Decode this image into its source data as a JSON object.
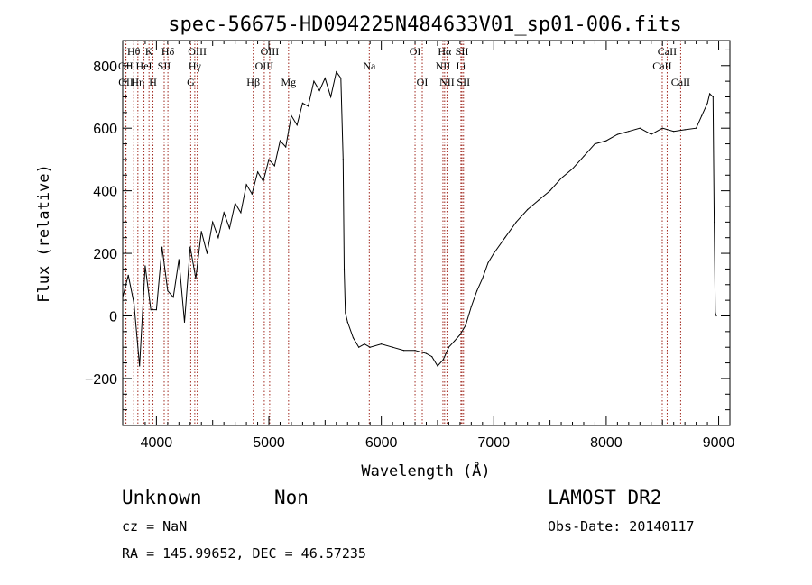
{
  "chart_data": {
    "type": "line",
    "title": "spec-56675-HD094225N484633V01_sp01-006.fits",
    "xlabel": "Wavelength (Å)",
    "ylabel": "Flux (relative)",
    "xlim": [
      3700,
      9100
    ],
    "ylim": [
      -350,
      880
    ],
    "xticks": [
      "4000",
      "5000",
      "6000",
      "7000",
      "8000",
      "9000"
    ],
    "yticks": [
      "−200",
      "0",
      "200",
      "400",
      "600",
      "800"
    ],
    "grid": false,
    "series": [
      {
        "x": [
          3700,
          3750,
          3800,
          3850,
          3900,
          3950,
          4000,
          4050,
          4100,
          4150,
          4200,
          4250,
          4300,
          4350,
          4400,
          4450,
          4500,
          4550,
          4600,
          4650,
          4700,
          4750,
          4800,
          4850,
          4900,
          4950,
          5000,
          5050,
          5100,
          5150,
          5200,
          5250,
          5300,
          5350,
          5400,
          5450,
          5500,
          5550,
          5600,
          5640,
          5660,
          5670,
          5680,
          5700,
          5750,
          5800,
          5850,
          5900,
          6000,
          6100,
          6200,
          6300,
          6400,
          6450,
          6500,
          6550,
          6600,
          6650,
          6700,
          6750,
          6800,
          6850,
          6900,
          6950,
          7000,
          7100,
          7200,
          7300,
          7400,
          7500,
          7600,
          7700,
          7800,
          7900,
          8000,
          8100,
          8200,
          8300,
          8400,
          8500,
          8600,
          8700,
          8800,
          8850,
          8900,
          8920,
          8950,
          8960,
          8970,
          8980
        ],
        "y": [
          60,
          130,
          40,
          -160,
          160,
          20,
          20,
          220,
          80,
          60,
          180,
          -20,
          220,
          120,
          270,
          200,
          300,
          250,
          330,
          280,
          360,
          330,
          420,
          390,
          460,
          430,
          500,
          480,
          560,
          540,
          640,
          610,
          680,
          670,
          750,
          720,
          760,
          700,
          780,
          760,
          500,
          150,
          10,
          -20,
          -70,
          -100,
          -90,
          -100,
          -90,
          -100,
          -110,
          -110,
          -120,
          -130,
          -160,
          -140,
          -100,
          -80,
          -60,
          -30,
          30,
          80,
          120,
          170,
          200,
          250,
          300,
          340,
          370,
          400,
          440,
          470,
          510,
          550,
          560,
          580,
          590,
          600,
          580,
          600,
          590,
          595,
          600,
          640,
          680,
          710,
          700,
          300,
          10,
          0
        ]
      }
    ],
    "spectral_lines": [
      {
        "label": "Hθ",
        "x": 3798,
        "row": 1
      },
      {
        "label": "OII",
        "x": 3727,
        "row": 2
      },
      {
        "label": "OII",
        "x": 3729,
        "row": 3
      },
      {
        "label": "K",
        "x": 3934,
        "row": 1
      },
      {
        "label": "HeI",
        "x": 3889,
        "row": 2
      },
      {
        "label": "Hη",
        "x": 3835,
        "row": 3
      },
      {
        "label": "Hδ",
        "x": 4102,
        "row": 1
      },
      {
        "label": "SII",
        "x": 4069,
        "row": 2
      },
      {
        "label": "H",
        "x": 3969,
        "row": 3
      },
      {
        "label": "OIII",
        "x": 4363,
        "row": 1
      },
      {
        "label": "Hγ",
        "x": 4341,
        "row": 2
      },
      {
        "label": "G",
        "x": 4305,
        "row": 3
      },
      {
        "label": "Hβ",
        "x": 4861,
        "row": 3
      },
      {
        "label": "OIII",
        "x": 5007,
        "row": 1
      },
      {
        "label": "OIII",
        "x": 4959,
        "row": 2
      },
      {
        "label": "Mg",
        "x": 5175,
        "row": 3
      },
      {
        "label": "Na",
        "x": 5893,
        "row": 2
      },
      {
        "label": "OI",
        "x": 6300,
        "row": 1
      },
      {
        "label": "OI",
        "x": 6364,
        "row": 3
      },
      {
        "label": "Hα",
        "x": 6563,
        "row": 1
      },
      {
        "label": "SII",
        "x": 6717,
        "row": 1
      },
      {
        "label": "NII",
        "x": 6548,
        "row": 2
      },
      {
        "label": "Li",
        "x": 6708,
        "row": 2
      },
      {
        "label": "NII",
        "x": 6584,
        "row": 3
      },
      {
        "label": "SII",
        "x": 6731,
        "row": 3
      },
      {
        "label": "CaII",
        "x": 8542,
        "row": 1
      },
      {
        "label": "CaII",
        "x": 8498,
        "row": 2
      },
      {
        "label": "CaII",
        "x": 8662,
        "row": 3
      }
    ]
  },
  "info": {
    "class": "Unknown",
    "subclass": "Non",
    "survey": "LAMOST DR2",
    "cz": "cz = NaN",
    "obs_date": "Obs-Date: 20140117",
    "radec": "RA = 145.99652, DEC =  46.57235"
  },
  "colors": {
    "spectrum": "#000000",
    "line_markers": "#a0281e"
  }
}
